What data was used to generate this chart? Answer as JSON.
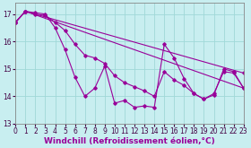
{
  "xlabel": "Windchill (Refroidissement éolien,°C)",
  "background_color": "#c8eef0",
  "line_color": "#990099",
  "grid_color": "#a0d8d8",
  "series": [
    {
      "x": [
        0,
        1,
        2,
        3,
        4,
        5,
        6,
        7,
        8,
        9,
        10,
        11,
        12,
        13,
        14,
        15,
        16,
        17,
        18,
        19,
        20,
        21,
        22,
        23
      ],
      "y": [
        16.7,
        17.1,
        17.05,
        17.0,
        16.5,
        15.7,
        14.7,
        14.0,
        14.3,
        15.1,
        13.75,
        13.85,
        13.6,
        13.65,
        13.6,
        15.9,
        15.4,
        14.65,
        14.1,
        13.9,
        14.1,
        14.9,
        14.85,
        14.3
      ]
    },
    {
      "x": [
        0,
        1,
        2,
        3,
        4,
        5,
        6,
        7,
        8,
        9,
        10,
        11,
        12,
        13,
        14,
        15,
        16,
        17,
        18,
        19,
        20,
        21,
        22,
        23
      ],
      "y": [
        16.7,
        17.1,
        17.0,
        16.95,
        16.7,
        16.4,
        15.9,
        15.5,
        15.4,
        15.2,
        14.75,
        14.5,
        14.35,
        14.2,
        14.0,
        14.9,
        14.6,
        14.4,
        14.1,
        13.9,
        14.05,
        15.0,
        14.9,
        14.3
      ]
    },
    {
      "x": [
        0,
        1,
        23
      ],
      "y": [
        16.7,
        17.1,
        14.85
      ]
    },
    {
      "x": [
        0,
        1,
        23
      ],
      "y": [
        16.7,
        17.1,
        14.3
      ]
    }
  ],
  "ylim": [
    13.0,
    17.4
  ],
  "xlim": [
    0,
    23
  ],
  "yticks": [
    13,
    14,
    15,
    16,
    17
  ],
  "xticks": [
    0,
    1,
    2,
    3,
    4,
    5,
    6,
    7,
    8,
    9,
    10,
    11,
    12,
    13,
    14,
    15,
    16,
    17,
    18,
    19,
    20,
    21,
    22,
    23
  ],
  "tick_fontsize": 5.5,
  "xlabel_fontsize": 6.5
}
